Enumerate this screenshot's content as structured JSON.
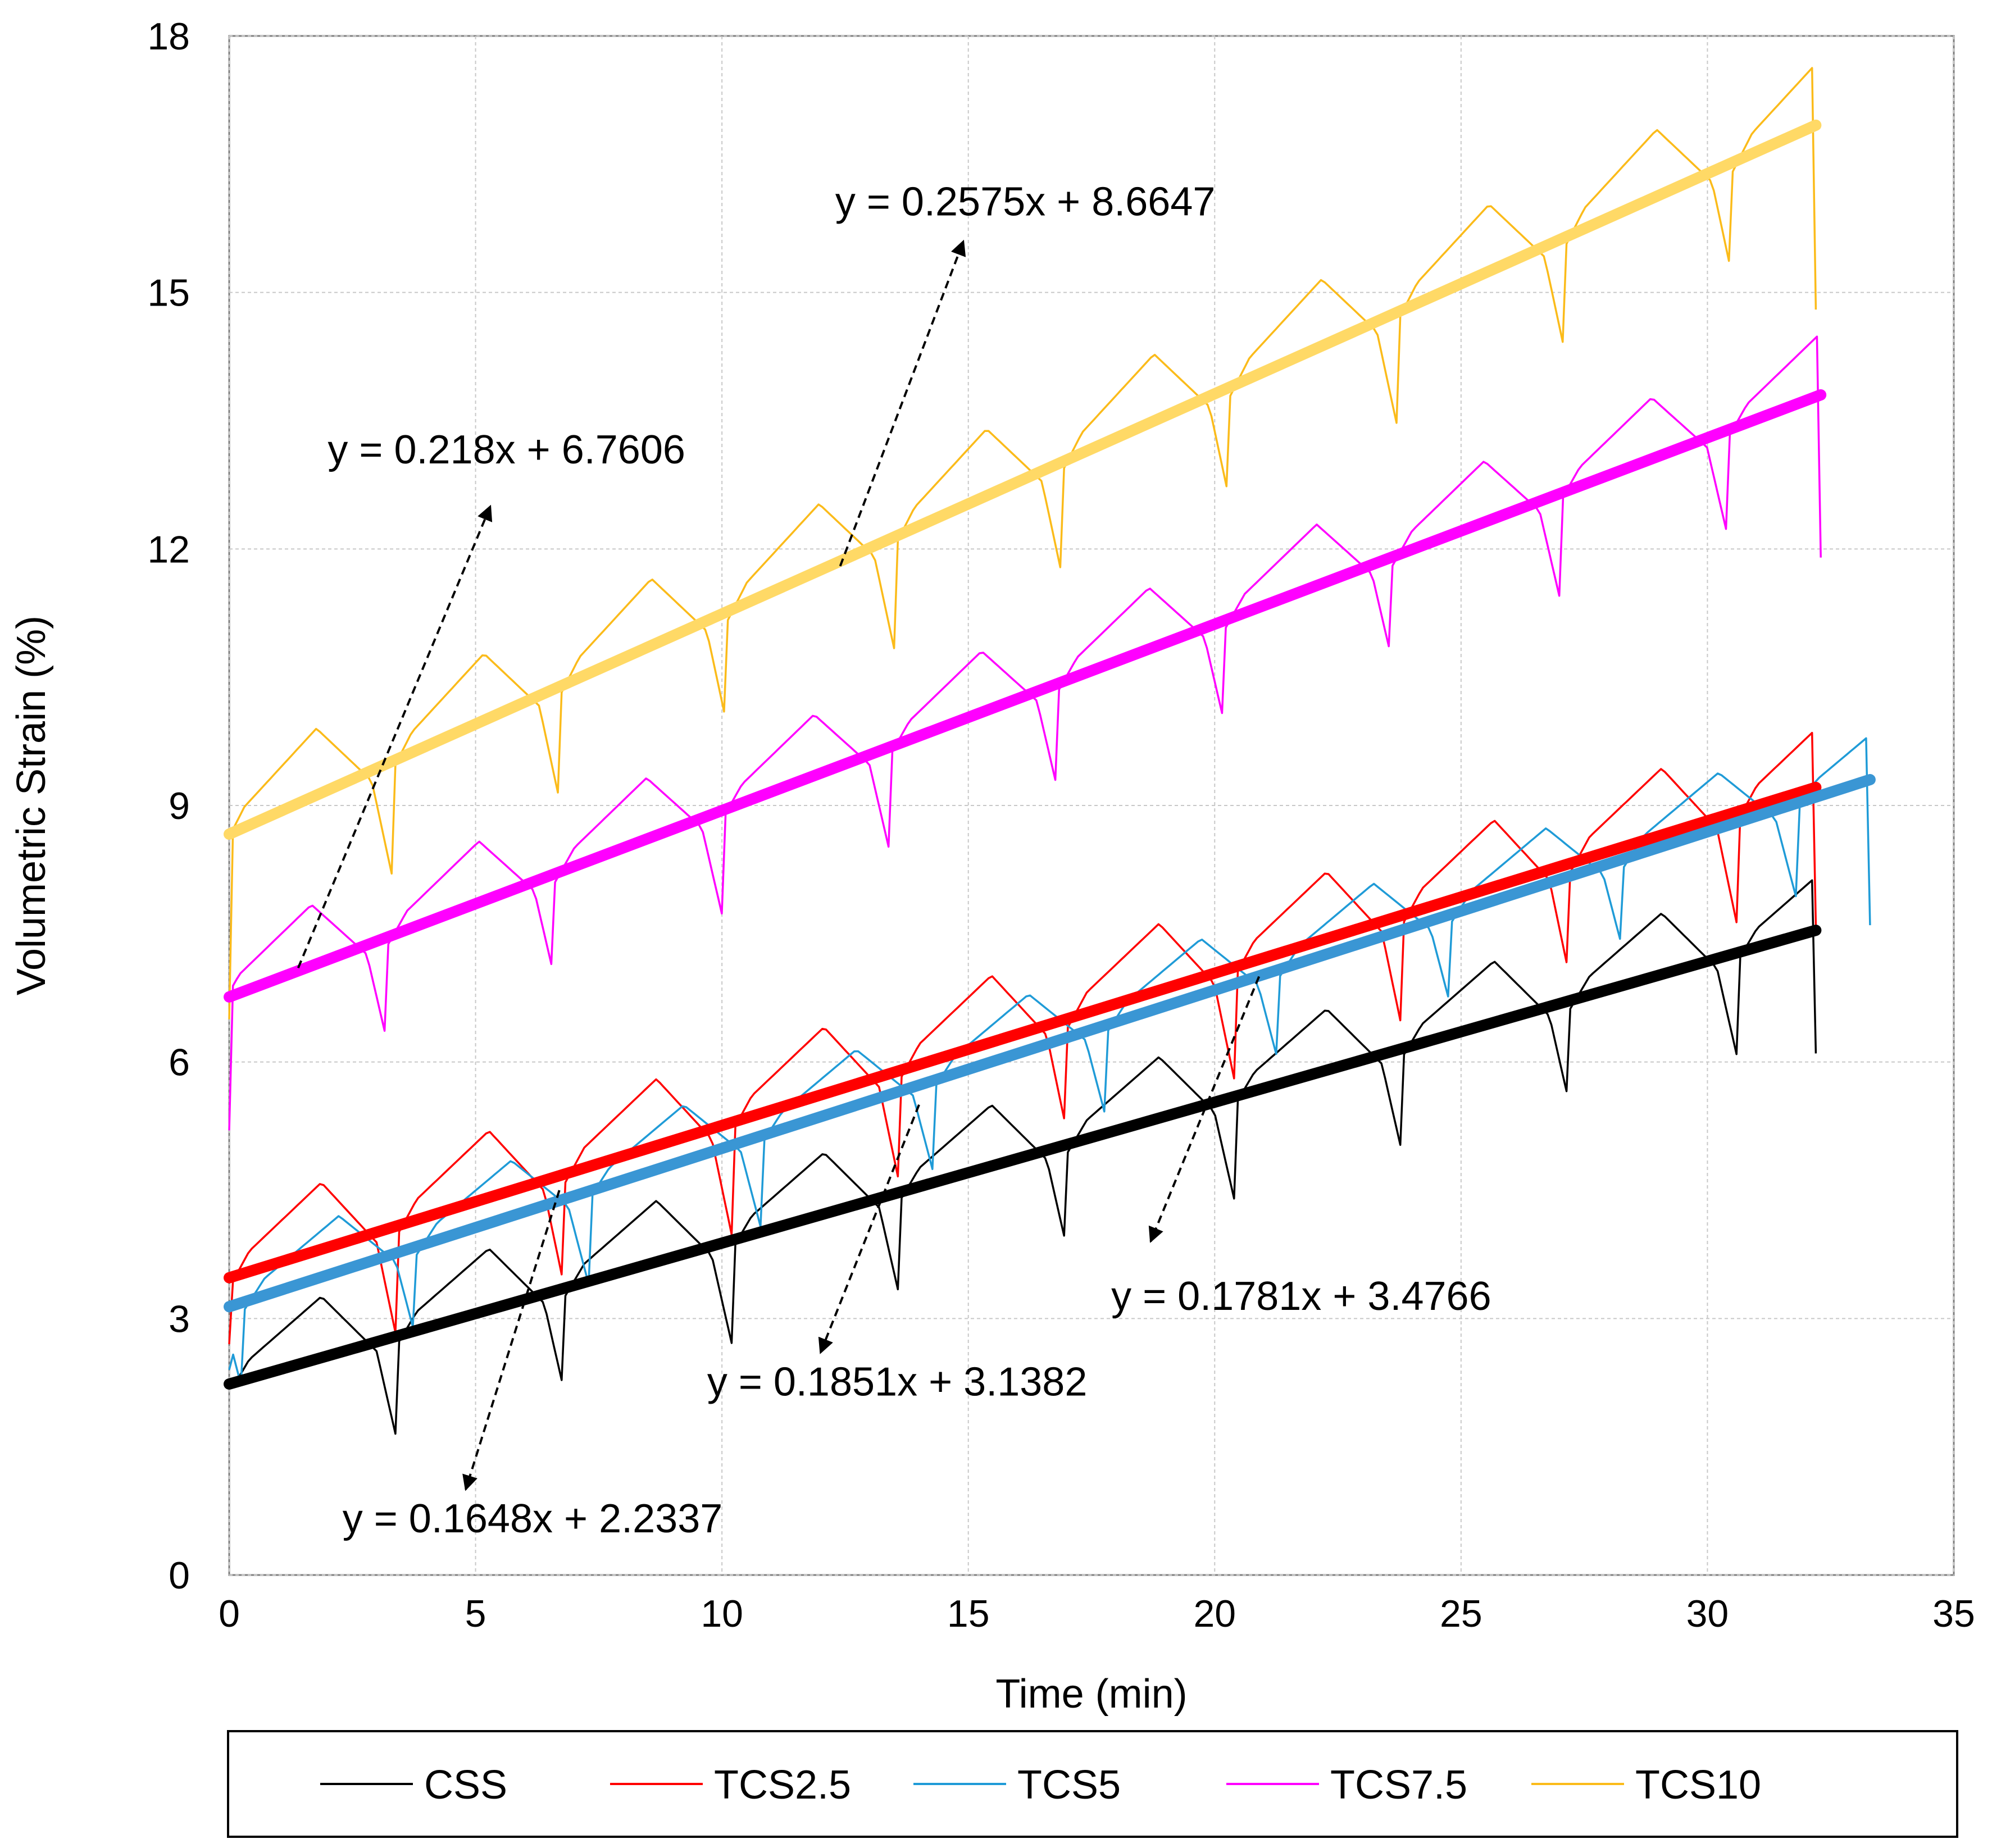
{
  "chart_data": {
    "type": "line",
    "xlabel": "Time (min)",
    "ylabel": "Volumetric Strain (%)",
    "xlim": [
      0,
      35
    ],
    "ylim": [
      0,
      18
    ],
    "xticks": [
      0,
      5,
      10,
      15,
      20,
      25,
      30,
      35
    ],
    "yticks": [
      0,
      3,
      6,
      9,
      12,
      15,
      18
    ],
    "xtick_labels": [
      "0",
      "5",
      "10",
      "15",
      "20",
      "25",
      "30",
      "35"
    ],
    "ytick_labels": [
      "0",
      "3",
      "6",
      "9",
      "12",
      "15",
      "18"
    ],
    "grid": true,
    "legend_position": "bottom",
    "series": [
      {
        "name": "CSS",
        "color": "#000000",
        "trend_color": "#000000",
        "period": 3.4,
        "shift": 0.0,
        "base": 2.2337,
        "slope": 0.1648,
        "amplitude": 1.1,
        "start_value": 2.3,
        "end_value": 6.1,
        "x_end": 32.2,
        "trend_x_end": 32.2,
        "trendline": {
          "slope": 0.1648,
          "intercept": 2.2337
        }
      },
      {
        "name": "TCS2.5",
        "color": "#ff0000",
        "trend_color": "#ff0000",
        "period": 3.4,
        "shift": 0.0,
        "base": 3.4766,
        "slope": 0.1781,
        "amplitude": 1.2,
        "start_value": 2.7,
        "end_value": 7.6,
        "x_end": 32.2,
        "trend_x_end": 32.2,
        "trendline": {
          "slope": 0.1781,
          "intercept": 3.4766
        }
      },
      {
        "name": "TCS5",
        "color": "#1f9bd7",
        "trend_color": "#3a96d4",
        "period": 3.5,
        "shift": 0.3,
        "base": 3.1382,
        "slope": 0.1851,
        "amplitude": 1.0,
        "start_value": 2.4,
        "end_value": 7.6,
        "x_end": 33.3,
        "trend_x_end": 33.3,
        "trendline": {
          "slope": 0.1851,
          "intercept": 3.1382
        }
      },
      {
        "name": "TCS7.5",
        "color": "#ff00ff",
        "trend_color": "#ff00ff",
        "period": 3.4,
        "shift": -0.2,
        "base": 6.7606,
        "slope": 0.218,
        "amplitude": 1.1,
        "start_value": 5.2,
        "end_value": 11.9,
        "x_end": 32.3,
        "trend_x_end": 32.3,
        "trendline": {
          "slope": 0.218,
          "intercept": 6.7606
        }
      },
      {
        "name": "TCS10",
        "color": "#fbbb1a",
        "trend_color": "#ffd966",
        "period": 3.4,
        "shift": -0.1,
        "base": 8.6647,
        "slope": 0.2575,
        "amplitude": 1.2,
        "start_value": 6.5,
        "end_value": 14.8,
        "x_end": 32.2,
        "trend_x_end": 32.2,
        "trendline": {
          "slope": 0.2575,
          "intercept": 8.6647
        }
      }
    ],
    "annotations": [
      {
        "text": "y = 0.218x + 6.7606",
        "series": "TCS7.5",
        "label_x": 2.0,
        "label_y": 13.0,
        "arrow_from": [
          1.4,
          7.1
        ],
        "arrow_to": [
          5.3,
          12.5
        ]
      },
      {
        "text": "y = 0.2575x + 8.6647",
        "series": "TCS10",
        "label_x": 12.3,
        "label_y": 15.9,
        "arrow_from": [
          12.4,
          11.8
        ],
        "arrow_to": [
          14.9,
          15.6
        ]
      },
      {
        "text": "y = 0.1781x + 3.4766",
        "series": "TCS2.5",
        "label_x": 17.9,
        "label_y": 3.1,
        "arrow_from": [
          20.9,
          7.0
        ],
        "arrow_to": [
          18.7,
          3.9
        ]
      },
      {
        "text": "y = 0.1851x + 3.1382",
        "series": "TCS5",
        "label_x": 9.7,
        "label_y": 2.1,
        "arrow_from": [
          14.0,
          5.5
        ],
        "arrow_to": [
          12.0,
          2.6
        ]
      },
      {
        "text": "y = 0.1648x + 2.2337",
        "series": "CSS",
        "label_x": 2.3,
        "label_y": 0.5,
        "arrow_from": [
          6.7,
          4.5
        ],
        "arrow_to": [
          4.8,
          1.0
        ]
      }
    ]
  }
}
